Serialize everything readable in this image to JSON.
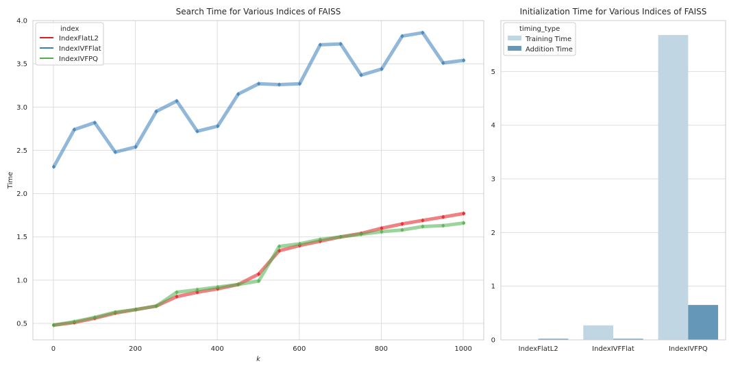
{
  "chart_data": [
    {
      "type": "line",
      "title": "Search Time for Various Indices of FAISS",
      "xlabel": "k",
      "ylabel": "Time",
      "xlim": [
        -50,
        1050
      ],
      "ylim": [
        0.31,
        4.0
      ],
      "xticks": [
        0,
        200,
        400,
        600,
        800,
        1000
      ],
      "yticks": [
        0.5,
        1.0,
        1.5,
        2.0,
        2.5,
        3.0,
        3.5,
        4.0
      ],
      "xtick_labels": [
        "0",
        "200",
        "400",
        "600",
        "800",
        "1000"
      ],
      "ytick_labels": [
        "0.5",
        "1.0",
        "1.5",
        "2.0",
        "2.5",
        "3.0",
        "3.5",
        "4.0"
      ],
      "grid": true,
      "legend": {
        "title": "index",
        "placement": "top-left"
      },
      "x": [
        1,
        51,
        101,
        151,
        201,
        251,
        301,
        351,
        401,
        451,
        501,
        551,
        601,
        651,
        701,
        751,
        801,
        851,
        901,
        951,
        1001
      ],
      "series": [
        {
          "name": "IndexFlatL2",
          "color": "#e41a1c",
          "values": [
            0.48,
            0.51,
            0.56,
            0.62,
            0.66,
            0.7,
            0.81,
            0.86,
            0.9,
            0.95,
            1.07,
            1.34,
            1.4,
            1.45,
            1.5,
            1.54,
            1.6,
            1.65,
            1.69,
            1.73,
            1.77
          ]
        },
        {
          "name": "IndexIVFFlat",
          "color": "#377eb8",
          "values": [
            2.31,
            2.74,
            2.82,
            2.48,
            2.54,
            2.95,
            3.07,
            2.72,
            2.78,
            3.15,
            3.27,
            3.26,
            3.27,
            3.72,
            3.73,
            3.37,
            3.44,
            3.82,
            3.86,
            3.51,
            3.54
          ]
        },
        {
          "name": "IndexIVFPQ",
          "color": "#4daf4a",
          "values": [
            0.48,
            0.52,
            0.57,
            0.63,
            0.66,
            0.7,
            0.86,
            0.89,
            0.92,
            0.95,
            0.99,
            1.39,
            1.42,
            1.47,
            1.5,
            1.53,
            1.56,
            1.58,
            1.62,
            1.63,
            1.66
          ]
        }
      ]
    },
    {
      "type": "bar",
      "title": "Initialization Time for Various Indices of FAISS",
      "xlabel": "",
      "ylabel": "",
      "categories": [
        "IndexFlatL2",
        "IndexIVFFlat",
        "IndexIVFPQ"
      ],
      "ylim": [
        0,
        5.95
      ],
      "yticks": [
        0,
        1,
        2,
        3,
        4,
        5
      ],
      "ytick_labels": [
        "0",
        "1",
        "2",
        "3",
        "4",
        "5"
      ],
      "grid": true,
      "legend": {
        "title": "timing_type",
        "placement": "top-left"
      },
      "series": [
        {
          "name": "Training Time",
          "color": "#c1d6e3",
          "values": [
            0.0,
            0.27,
            5.68
          ]
        },
        {
          "name": "Addition Time",
          "color": "#6497b8",
          "values": [
            0.02,
            0.02,
            0.65
          ]
        }
      ]
    }
  ]
}
